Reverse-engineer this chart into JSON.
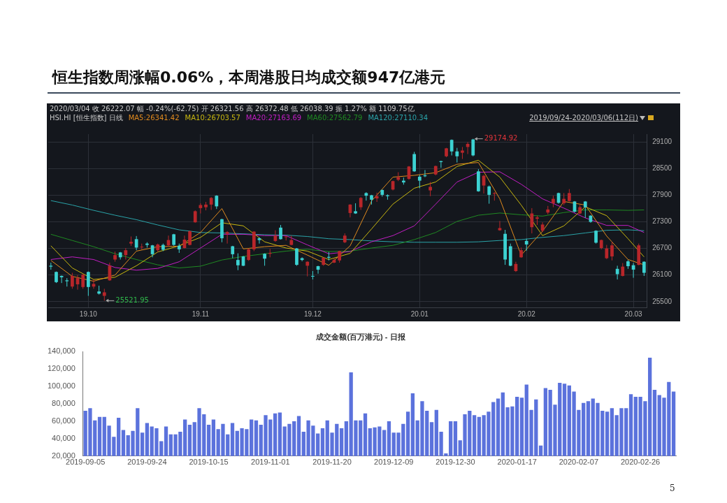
{
  "chart_data": [
    {
      "type": "candlestick",
      "title": "恒生指数周涨幅0.06%，本周港股日均成交额947亿港元",
      "subtitle": "2020/03/04  收 26222.07  幅 -0.24%(-62.75)  开 26321.56  高 26372.48  低 26038.39  振 1.27%  额 1109.75亿",
      "annotations": [
        "HSI.HI [恒生指数] 日线",
        "2019/09/24-2020/03/06(112日)",
        "29174.92",
        "25521.95"
      ],
      "legend": "top left",
      "grid": true,
      "ylim": [
        25370,
        29280
      ],
      "yticks": [
        25500,
        26100,
        26700,
        27300,
        27900,
        28500,
        29100
      ],
      "categories": [
        null,
        null,
        null,
        null,
        null,
        null,
        null,
        "19.10",
        null,
        null,
        null,
        null,
        null,
        null,
        null,
        null,
        null,
        null,
        null,
        null,
        null,
        null,
        null,
        null,
        null,
        null,
        null,
        null,
        "19.11",
        null,
        null,
        null,
        null,
        null,
        null,
        null,
        null,
        null,
        null,
        null,
        null,
        null,
        null,
        null,
        null,
        null,
        null,
        null,
        null,
        "19.12",
        null,
        null,
        null,
        null,
        null,
        null,
        null,
        null,
        null,
        null,
        null,
        null,
        null,
        null,
        null,
        null,
        null,
        null,
        null,
        "20.01",
        null,
        null,
        null,
        null,
        null,
        null,
        null,
        null,
        null,
        null,
        null,
        null,
        null,
        null,
        null,
        null,
        null,
        null,
        null,
        "20.02",
        null,
        null,
        null,
        null,
        null,
        null,
        null,
        null,
        null,
        null,
        null,
        null,
        null,
        null,
        null,
        null,
        null,
        null,
        null,
        "20.03",
        null,
        null
      ],
      "ohlc": [
        [
          26310,
          26380,
          26220,
          26290
        ],
        [
          26170,
          26180,
          25920,
          25940
        ],
        [
          26080,
          26090,
          25920,
          26050
        ],
        [
          25980,
          26030,
          25840,
          25960
        ],
        [
          25840,
          26150,
          25790,
          26080
        ],
        [
          25890,
          26100,
          25770,
          26030
        ],
        [
          25830,
          26120,
          25790,
          26110
        ],
        [
          26170,
          26180,
          25630,
          25830
        ],
        [
          25840,
          26000,
          25790,
          25900
        ],
        [
          25730,
          25860,
          25660,
          25680
        ],
        [
          25630,
          25790,
          25521.95,
          25710
        ],
        [
          25980,
          26380,
          25970,
          26310
        ],
        [
          26450,
          26630,
          26400,
          26550
        ],
        [
          26610,
          26620,
          26450,
          26500
        ],
        [
          26550,
          26710,
          26450,
          26660
        ],
        [
          26810,
          26970,
          26760,
          26850
        ],
        [
          26910,
          26980,
          26660,
          26720
        ],
        [
          26730,
          26810,
          26680,
          26740
        ],
        [
          26810,
          26840,
          26720,
          26780
        ],
        [
          26770,
          26780,
          26500,
          26570
        ],
        [
          26660,
          26810,
          26620,
          26790
        ],
        [
          26780,
          26810,
          26640,
          26670
        ],
        [
          26770,
          26990,
          26740,
          26890
        ],
        [
          27020,
          27030,
          26760,
          26780
        ],
        [
          26760,
          26810,
          26600,
          26680
        ],
        [
          26710,
          26990,
          26700,
          26900
        ],
        [
          26780,
          27100,
          26770,
          27090
        ],
        [
          27290,
          27560,
          27280,
          27540
        ],
        [
          27610,
          27720,
          27490,
          27680
        ],
        [
          27630,
          27750,
          27560,
          27690
        ],
        [
          27690,
          27860,
          27570,
          27840
        ],
        [
          27890,
          27900,
          27590,
          27650
        ],
        [
          27360,
          27370,
          26840,
          26930
        ],
        [
          27030,
          27090,
          26810,
          27070
        ],
        [
          26750,
          26760,
          26480,
          26570
        ],
        [
          26440,
          26590,
          26210,
          26320
        ],
        [
          26520,
          26530,
          26300,
          26310
        ],
        [
          26440,
          26700,
          26420,
          26680
        ],
        [
          26680,
          27090,
          26640,
          27080
        ],
        [
          26930,
          26950,
          26810,
          26890
        ],
        [
          26580,
          26590,
          26310,
          26470
        ],
        [
          26580,
          26690,
          26500,
          26600
        ],
        [
          26870,
          27110,
          26850,
          26990
        ],
        [
          27170,
          27230,
          26900,
          26910
        ],
        [
          26960,
          26980,
          26880,
          26970
        ],
        [
          26780,
          26990,
          26770,
          26890
        ],
        [
          26700,
          26710,
          26310,
          26330
        ],
        [
          26480,
          26500,
          26410,
          26440
        ],
        [
          26310,
          26410,
          26070,
          26400
        ],
        [
          26080,
          26190,
          26000,
          26070
        ],
        [
          26300,
          26310,
          26130,
          26220
        ],
        [
          26330,
          26500,
          26310,
          26490
        ],
        [
          26510,
          26620,
          26430,
          26490
        ],
        [
          26380,
          26480,
          26370,
          26440
        ],
        [
          26430,
          26650,
          26380,
          26640
        ],
        [
          26840,
          27040,
          26820,
          26990
        ],
        [
          27500,
          27700,
          27400,
          27690
        ],
        [
          27540,
          27720,
          27480,
          27490
        ],
        [
          27630,
          27860,
          27570,
          27840
        ],
        [
          27950,
          27970,
          27780,
          27890
        ],
        [
          27900,
          27910,
          27690,
          27800
        ],
        [
          27830,
          27960,
          27750,
          27880
        ],
        [
          28020,
          28030,
          27870,
          27910
        ],
        [
          27900,
          27920,
          27800,
          27880
        ],
        [
          28030,
          28230,
          28010,
          28220
        ],
        [
          28250,
          28420,
          28220,
          28310
        ],
        [
          28230,
          28300,
          28140,
          28190
        ],
        [
          28270,
          28560,
          28250,
          28550
        ],
        [
          28830,
          28880,
          28430,
          28440
        ],
        [
          28320,
          28360,
          28060,
          28230
        ],
        [
          28350,
          28470,
          28310,
          28330
        ],
        [
          28010,
          28200,
          27880,
          28090
        ],
        [
          28370,
          28570,
          28350,
          28560
        ],
        [
          28670,
          28680,
          28520,
          28650
        ],
        [
          28780,
          28970,
          28760,
          28960
        ],
        [
          29150,
          29160,
          28800,
          28890
        ],
        [
          28890,
          28970,
          28640,
          28780
        ],
        [
          28860,
          28990,
          28720,
          28910
        ],
        [
          28990,
          29100,
          28830,
          29060
        ],
        [
          29160,
          29174.92,
          28780,
          28800
        ],
        [
          28440,
          28490,
          27980,
          27990
        ],
        [
          28120,
          28360,
          27940,
          28340
        ],
        [
          28100,
          28120,
          27710,
          27910
        ],
        [
          27940,
          27970,
          27780,
          27950
        ],
        [
          27110,
          27320,
          27100,
          27160
        ],
        [
          27030,
          27120,
          26330,
          26450
        ],
        [
          26750,
          26810,
          26300,
          26310
        ],
        [
          26190,
          26400,
          26170,
          26350
        ],
        [
          26500,
          26720,
          26490,
          26660
        ],
        [
          26870,
          26920,
          26650,
          26790
        ],
        [
          27180,
          27610,
          27040,
          27490
        ],
        [
          27370,
          27440,
          27230,
          27400
        ],
        [
          27100,
          27290,
          27070,
          27240
        ],
        [
          27510,
          27660,
          27470,
          27580
        ],
        [
          27720,
          27890,
          27630,
          27820
        ],
        [
          27950,
          27960,
          27710,
          27730
        ],
        [
          27720,
          27950,
          27680,
          27820
        ],
        [
          27770,
          28040,
          27760,
          27950
        ],
        [
          27760,
          27770,
          27510,
          27530
        ],
        [
          27490,
          27680,
          27470,
          27630
        ],
        [
          27760,
          27770,
          27390,
          27630
        ],
        [
          27440,
          27450,
          27280,
          27300
        ],
        [
          27100,
          27110,
          26810,
          26830
        ],
        [
          26710,
          26900,
          26680,
          26890
        ],
        [
          26480,
          26780,
          26460,
          26700
        ],
        [
          26520,
          26850,
          26430,
          26770
        ],
        [
          26240,
          26310,
          26000,
          26120
        ],
        [
          26080,
          26370,
          26070,
          26290
        ],
        [
          26410,
          26440,
          26240,
          26300
        ],
        [
          26321.56,
          26372.48,
          26038.39,
          26222.07
        ],
        [
          26330,
          26810,
          26320,
          26770
        ],
        [
          26400,
          26410,
          26080,
          26150
        ]
      ],
      "colors": [
        "#3cd2d2",
        "#3cd2d2",
        "#3cd2d2",
        "#3cd2d2",
        "#b8262a",
        "#b8262a",
        "#b8262a",
        "#3cd2d2",
        "#b8262a",
        "#3cd2d2",
        "#b8262a",
        "#b8262a",
        "#b8262a",
        "#3cd2d2",
        "#b8262a",
        "#b8262a",
        "#3cd2d2",
        "#b8262a",
        "#3cd2d2",
        "#3cd2d2",
        "#b8262a",
        "#3cd2d2",
        "#b8262a",
        "#3cd2d2",
        "#3cd2d2",
        "#b8262a",
        "#b8262a",
        "#b8262a",
        "#b8262a",
        "#b8262a",
        "#b8262a",
        "#3cd2d2",
        "#3cd2d2",
        "#b8262a",
        "#3cd2d2",
        "#3cd2d2",
        "#3cd2d2",
        "#b8262a",
        "#b8262a",
        "#3cd2d2",
        "#3cd2d2",
        "#b8262a",
        "#b8262a",
        "#3cd2d2",
        "#b8262a",
        "#b8262a",
        "#3cd2d2",
        "#3cd2d2",
        "#b8262a",
        "#3cd2d2",
        "#3cd2d2",
        "#b8262a",
        "#3cd2d2",
        "#b8262a",
        "#b8262a",
        "#b8262a",
        "#b8262a",
        "#3cd2d2",
        "#b8262a",
        "#3cd2d2",
        "#3cd2d2",
        "#b8262a",
        "#3cd2d2",
        "#3cd2d2",
        "#b8262a",
        "#b8262a",
        "#3cd2d2",
        "#b8262a",
        "#3cd2d2",
        "#3cd2d2",
        "#3cd2d2",
        "#b8262a",
        "#b8262a",
        "#3cd2d2",
        "#b8262a",
        "#3cd2d2",
        "#3cd2d2",
        "#b8262a",
        "#b8262a",
        "#3cd2d2",
        "#3cd2d2",
        "#b8262a",
        "#3cd2d2",
        "#b8262a",
        "#b8262a",
        "#3cd2d2",
        "#3cd2d2",
        "#b8262a",
        "#b8262a",
        "#3cd2d2",
        "#b8262a",
        "#b8262a",
        "#b8262a",
        "#b8262a",
        "#b8262a",
        "#3cd2d2",
        "#b8262a",
        "#b8262a",
        "#3cd2d2",
        "#b8262a",
        "#3cd2d2",
        "#3cd2d2",
        "#3cd2d2",
        "#b8262a",
        "#b8262a",
        "#b8262a",
        "#3cd2d2",
        "#b8262a",
        "#3cd2d2",
        "#3cd2d2",
        "#b8262a",
        "#3cd2d2"
      ],
      "series": [
        {
          "type": "line",
          "name": "MA5:26341.42",
          "color": "#e08a1e",
          "values": [
            26430,
            null,
            null,
            null,
            26070,
            null,
            null,
            null,
            25960,
            null,
            null,
            null,
            26100,
            null,
            null,
            null,
            26640,
            null,
            null,
            null,
            26740,
            null,
            null,
            null,
            26750,
            null,
            null,
            null,
            27060,
            null,
            null,
            null,
            27600,
            null,
            null,
            null,
            26690,
            null,
            null,
            null,
            26740,
            null,
            null,
            null,
            26770,
            null,
            null,
            null,
            26550,
            null,
            null,
            null,
            26320,
            null,
            null,
            null,
            26760,
            null,
            null,
            null,
            27770,
            null,
            null,
            null,
            28310,
            null,
            null,
            null,
            28350,
            null,
            null,
            null,
            28410,
            null,
            null,
            null,
            28600,
            null,
            null,
            null,
            28640,
            null,
            null,
            null,
            27820,
            null,
            null,
            null,
            26550,
            null,
            null,
            null,
            27090,
            null,
            null,
            null,
            27760,
            null,
            null,
            null,
            27680,
            null,
            null,
            null,
            26980,
            null,
            null,
            null,
            26450,
            null,
            null,
            26330
          ]
        },
        {
          "type": "line",
          "name": "MA10:26703.57",
          "color": "#c9b810",
          "values": [
            26760,
            null,
            null,
            null,
            26260,
            null,
            null,
            null,
            26000,
            null,
            null,
            null,
            26050,
            null,
            null,
            null,
            26310,
            null,
            null,
            null,
            26620,
            null,
            null,
            null,
            26760,
            null,
            null,
            null,
            26950,
            null,
            null,
            null,
            27280,
            null,
            null,
            null,
            27210,
            null,
            null,
            null,
            26850,
            null,
            null,
            null,
            26710,
            null,
            null,
            null,
            26640,
            null,
            null,
            null,
            26450,
            null,
            null,
            null,
            26590,
            null,
            null,
            null,
            27140,
            null,
            null,
            null,
            27700,
            null,
            null,
            null,
            28060,
            null,
            null,
            null,
            28200,
            null,
            null,
            null,
            28550,
            null,
            null,
            null,
            28690,
            null,
            null,
            null,
            28310,
            null,
            null,
            null,
            27680,
            null,
            null,
            null,
            26990,
            null,
            null,
            null,
            27210,
            null,
            null,
            null,
            27640,
            null,
            null,
            null,
            27440,
            null,
            null,
            null,
            26920,
            null,
            null,
            26510
          ]
        },
        {
          "type": "line",
          "name": "MA20:27163.69",
          "color": "#c21ec4",
          "values": [
            26450,
            null,
            null,
            null,
            26510,
            null,
            null,
            null,
            26450,
            null,
            null,
            null,
            26270,
            null,
            null,
            null,
            26210,
            null,
            null,
            null,
            26250,
            null,
            null,
            null,
            26400,
            null,
            null,
            null,
            26710,
            null,
            null,
            null,
            27020,
            null,
            null,
            null,
            27020,
            null,
            null,
            null,
            26990,
            null,
            null,
            null,
            26990,
            null,
            null,
            null,
            26780,
            null,
            null,
            null,
            26580,
            null,
            null,
            null,
            26630,
            null,
            null,
            null,
            26850,
            null,
            null,
            null,
            26990,
            null,
            null,
            null,
            27210,
            null,
            null,
            null,
            27700,
            null,
            null,
            null,
            28200,
            null,
            null,
            null,
            28420,
            null,
            null,
            null,
            28430,
            null,
            null,
            null,
            28150,
            null,
            null,
            null,
            27820,
            null,
            null,
            null,
            27610,
            null,
            null,
            null,
            27390,
            null,
            null,
            null,
            27220,
            null,
            null,
            null,
            27220,
            null,
            null,
            27060
          ]
        },
        {
          "type": "line",
          "name": "MA60:27562.79",
          "color": "#1f8a22",
          "values": [
            27020,
            null,
            null,
            null,
            26880,
            null,
            null,
            null,
            26740,
            null,
            null,
            null,
            26580,
            null,
            null,
            null,
            26450,
            null,
            null,
            null,
            26330,
            null,
            null,
            null,
            26260,
            null,
            null,
            null,
            26300,
            null,
            null,
            null,
            26440,
            null,
            null,
            null,
            26520,
            null,
            null,
            null,
            26580,
            null,
            null,
            null,
            26640,
            null,
            null,
            null,
            26680,
            null,
            null,
            null,
            26630,
            null,
            null,
            null,
            26640,
            null,
            null,
            null,
            26710,
            null,
            null,
            null,
            26770,
            null,
            null,
            null,
            26900,
            null,
            null,
            null,
            27060,
            null,
            null,
            null,
            27310,
            null,
            null,
            null,
            27450,
            null,
            null,
            null,
            27500,
            null,
            null,
            null,
            27460,
            null,
            null,
            null,
            27430,
            null,
            null,
            null,
            27510,
            null,
            null,
            null,
            27570,
            null,
            null,
            null,
            27570,
            null,
            null,
            null,
            27560,
            null,
            null,
            27570
          ]
        },
        {
          "type": "line",
          "name": "MA120:27110.34",
          "color": "#2aa3a8",
          "values": [
            27780,
            null,
            null,
            null,
            27680,
            null,
            null,
            null,
            27560,
            null,
            null,
            null,
            27450,
            null,
            null,
            null,
            27350,
            null,
            null,
            null,
            27230,
            null,
            null,
            null,
            27120,
            null,
            null,
            null,
            27060,
            null,
            null,
            null,
            27050,
            null,
            null,
            null,
            27030,
            null,
            null,
            null,
            27010,
            null,
            null,
            null,
            27000,
            null,
            null,
            null,
            26970,
            null,
            null,
            null,
            26920,
            null,
            null,
            null,
            26900,
            null,
            null,
            null,
            26870,
            null,
            null,
            null,
            26850,
            null,
            null,
            null,
            26840,
            null,
            null,
            null,
            26840,
            null,
            null,
            null,
            26840,
            null,
            null,
            null,
            26850,
            null,
            null,
            null,
            26880,
            null,
            null,
            null,
            26900,
            null,
            null,
            null,
            26950,
            null,
            null,
            null,
            26990,
            null,
            null,
            null,
            27050,
            null,
            null,
            null,
            27110,
            null,
            null,
            null,
            27120,
            null,
            null,
            27100
          ]
        }
      ]
    },
    {
      "type": "bar",
      "title": "成交金额(百万港元) - 日报",
      "color": "#5b72dc",
      "ylim": [
        20000,
        140000
      ],
      "yticks": [
        {
          "value": 20000,
          "label": "20,000"
        },
        {
          "value": 40000,
          "label": "40,000"
        },
        {
          "value": 60000,
          "label": "60,000"
        },
        {
          "value": 80000,
          "label": "80,000"
        },
        {
          "value": 100000,
          "label": "100,000"
        },
        {
          "value": 120000,
          "label": "120,000"
        },
        {
          "value": 140000,
          "label": "140,000"
        }
      ],
      "annotations": [
        "5"
      ],
      "categories": [
        "2019-09-05",
        null,
        null,
        null,
        null,
        null,
        null,
        null,
        null,
        null,
        null,
        null,
        null,
        "2019-09-24",
        null,
        null,
        null,
        null,
        null,
        null,
        null,
        null,
        null,
        null,
        null,
        null,
        "2019-10-15",
        null,
        null,
        null,
        null,
        null,
        null,
        null,
        null,
        null,
        null,
        null,
        null,
        "2019-11-01",
        null,
        null,
        null,
        null,
        null,
        null,
        null,
        null,
        null,
        null,
        null,
        null,
        "2019-11-20",
        null,
        null,
        null,
        null,
        null,
        null,
        null,
        null,
        null,
        null,
        null,
        null,
        "2019-12-09",
        null,
        null,
        null,
        null,
        null,
        null,
        null,
        null,
        null,
        null,
        null,
        null,
        "2019-12-30",
        null,
        null,
        null,
        null,
        null,
        null,
        null,
        null,
        null,
        null,
        null,
        null,
        "2020-01-17",
        null,
        null,
        null,
        null,
        null,
        null,
        null,
        null,
        null,
        null,
        null,
        null,
        "2020-02-07",
        null,
        null,
        null,
        null,
        null,
        null,
        null,
        null,
        null,
        null,
        null,
        null,
        "2020-02-26",
        null,
        null,
        null,
        null,
        null,
        null,
        null
      ],
      "values": [
        72000,
        75000,
        61000,
        65000,
        65000,
        55000,
        42000,
        64000,
        50000,
        44000,
        49000,
        75000,
        47000,
        58000,
        54000,
        52000,
        37000,
        54000,
        45000,
        45000,
        48000,
        62000,
        56000,
        59000,
        75000,
        68000,
        56000,
        62000,
        51000,
        57000,
        45000,
        58000,
        49000,
        52000,
        51000,
        62000,
        61000,
        56000,
        67000,
        62000,
        69000,
        70000,
        54000,
        57000,
        60000,
        66000,
        48000,
        61000,
        55000,
        46000,
        52000,
        61000,
        47000,
        57000,
        52000,
        60000,
        116000,
        61000,
        61000,
        69000,
        52000,
        53000,
        54000,
        50000,
        60000,
        47000,
        47000,
        57000,
        71000,
        92000,
        61000,
        83000,
        72000,
        59000,
        73000,
        48000,
        23000,
        60000,
        60000,
        38000,
        68000,
        72000,
        67000,
        65000,
        67000,
        71000,
        82000,
        86000,
        93000,
        76000,
        77000,
        88000,
        87000,
        102000,
        73000,
        85000,
        32000,
        98000,
        96000,
        79000,
        104000,
        103000,
        101000,
        94000,
        73000,
        81000,
        83000,
        86000,
        81000,
        72000,
        71000,
        75000,
        67000,
        75000,
        75000,
        91000,
        88000,
        88000,
        83000,
        133000,
        96000,
        90000,
        87000,
        105000,
        94000
      ]
    }
  ]
}
